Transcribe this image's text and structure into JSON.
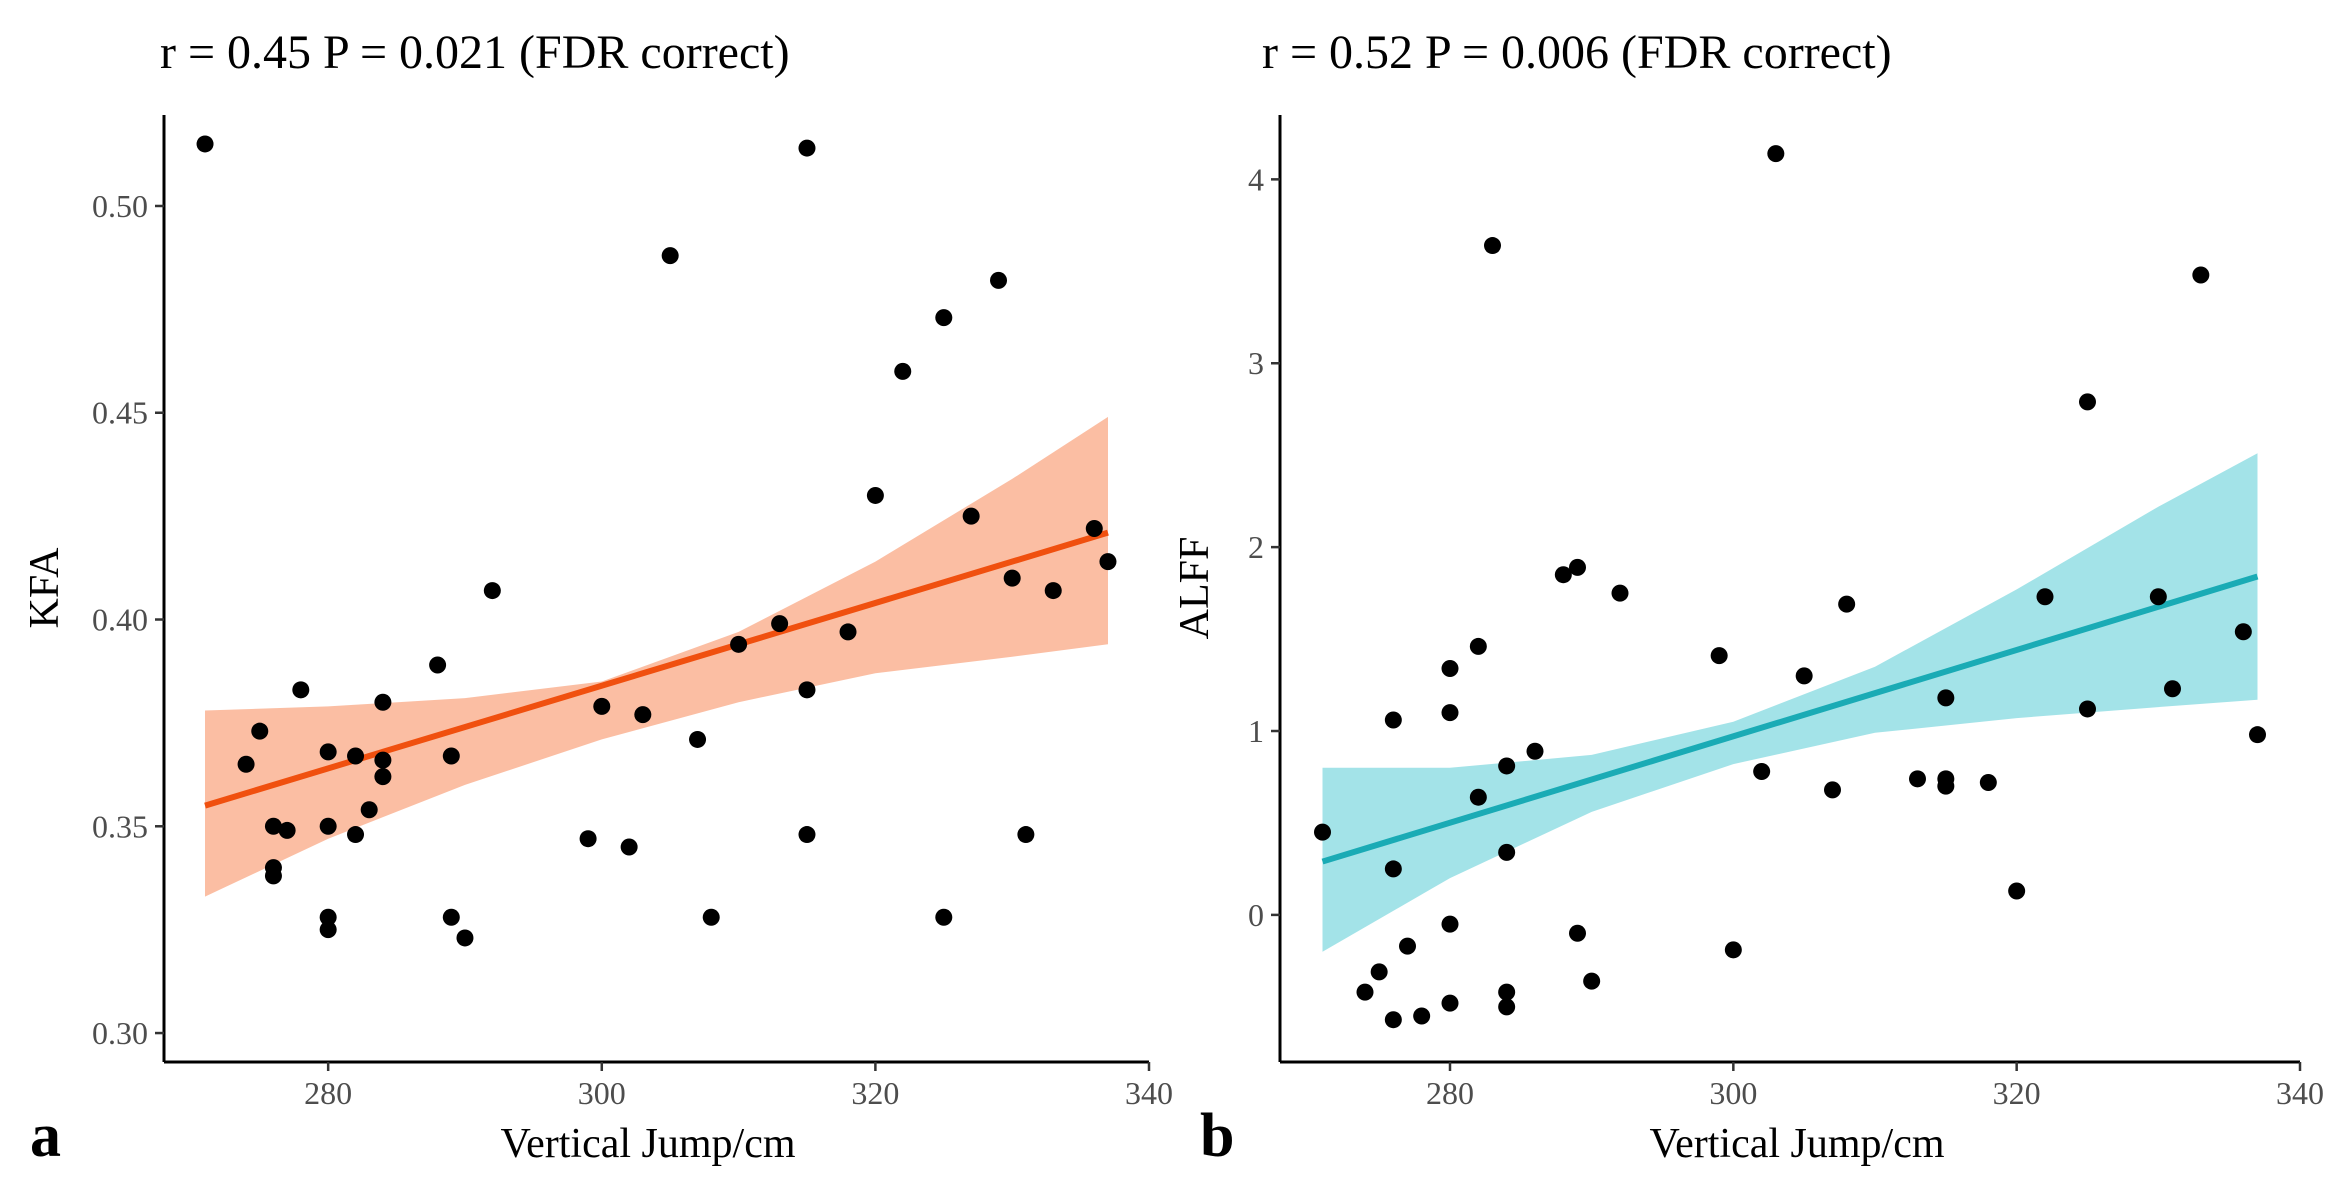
{
  "chart_data": [
    {
      "panel_label": "a",
      "type": "scatter",
      "title": "r = 0.45 P = 0.021 (FDR correct)",
      "xlabel": "Vertical Jump/cm",
      "ylabel": "KFA",
      "xlim": [
        268,
        340
      ],
      "ylim": [
        0.293,
        0.522
      ],
      "xticks": [
        "280",
        "300",
        "320",
        "340"
      ],
      "xtick_values": [
        280,
        300,
        320,
        340
      ],
      "yticks": [
        "0.30",
        "0.35",
        "0.40",
        "0.45",
        "0.50"
      ],
      "ytick_values": [
        0.3,
        0.35,
        0.4,
        0.45,
        0.5
      ],
      "grid": false,
      "point_color": "#000000",
      "fit_color": "#F0500F",
      "band_color": "#FBB596",
      "fit_line": {
        "x": [
          271,
          337
        ],
        "y": [
          0.355,
          0.421
        ]
      },
      "confidence_band": {
        "x": [
          271,
          280,
          290,
          300,
          310,
          320,
          330,
          337
        ],
        "lower": [
          0.333,
          0.347,
          0.36,
          0.371,
          0.38,
          0.387,
          0.391,
          0.394
        ],
        "upper": [
          0.378,
          0.379,
          0.381,
          0.385,
          0.397,
          0.414,
          0.434,
          0.449
        ]
      },
      "points": [
        {
          "x": 271,
          "y": 0.515
        },
        {
          "x": 274,
          "y": 0.365
        },
        {
          "x": 275,
          "y": 0.373
        },
        {
          "x": 276,
          "y": 0.35
        },
        {
          "x": 276,
          "y": 0.34
        },
        {
          "x": 276,
          "y": 0.338
        },
        {
          "x": 277,
          "y": 0.349
        },
        {
          "x": 278,
          "y": 0.383
        },
        {
          "x": 280,
          "y": 0.368
        },
        {
          "x": 280,
          "y": 0.35
        },
        {
          "x": 280,
          "y": 0.328
        },
        {
          "x": 280,
          "y": 0.325
        },
        {
          "x": 282,
          "y": 0.367
        },
        {
          "x": 282,
          "y": 0.348
        },
        {
          "x": 283,
          "y": 0.354
        },
        {
          "x": 284,
          "y": 0.38
        },
        {
          "x": 284,
          "y": 0.366
        },
        {
          "x": 284,
          "y": 0.362
        },
        {
          "x": 288,
          "y": 0.389
        },
        {
          "x": 289,
          "y": 0.367
        },
        {
          "x": 289,
          "y": 0.328
        },
        {
          "x": 290,
          "y": 0.323
        },
        {
          "x": 292,
          "y": 0.407
        },
        {
          "x": 299,
          "y": 0.347
        },
        {
          "x": 300,
          "y": 0.379
        },
        {
          "x": 302,
          "y": 0.345
        },
        {
          "x": 303,
          "y": 0.377
        },
        {
          "x": 305,
          "y": 0.488
        },
        {
          "x": 307,
          "y": 0.371
        },
        {
          "x": 308,
          "y": 0.328
        },
        {
          "x": 310,
          "y": 0.394
        },
        {
          "x": 313,
          "y": 0.399
        },
        {
          "x": 315,
          "y": 0.514
        },
        {
          "x": 315,
          "y": 0.383
        },
        {
          "x": 315,
          "y": 0.348
        },
        {
          "x": 318,
          "y": 0.397
        },
        {
          "x": 320,
          "y": 0.43
        },
        {
          "x": 322,
          "y": 0.46
        },
        {
          "x": 325,
          "y": 0.473
        },
        {
          "x": 325,
          "y": 0.328
        },
        {
          "x": 327,
          "y": 0.425
        },
        {
          "x": 329,
          "y": 0.482
        },
        {
          "x": 330,
          "y": 0.41
        },
        {
          "x": 331,
          "y": 0.348
        },
        {
          "x": 333,
          "y": 0.407
        },
        {
          "x": 336,
          "y": 0.422
        },
        {
          "x": 337,
          "y": 0.414
        }
      ]
    },
    {
      "panel_label": "b",
      "type": "scatter",
      "title": "r = 0.52 P = 0.006 (FDR correct)",
      "xlabel": "Vertical Jump/cm",
      "ylabel": "ALFF",
      "xlim": [
        268,
        340
      ],
      "ylim": [
        -0.8,
        4.35
      ],
      "xticks": [
        "280",
        "300",
        "320",
        "340"
      ],
      "xtick_values": [
        280,
        300,
        320,
        340
      ],
      "yticks": [
        "0",
        "1",
        "2",
        "3",
        "4"
      ],
      "ytick_values": [
        0,
        1,
        2,
        3,
        4
      ],
      "grid": false,
      "point_color": "#000000",
      "fit_color": "#1AABB5",
      "band_color": "#96DFE5",
      "fit_line": {
        "x": [
          271,
          337
        ],
        "y": [
          0.29,
          1.84
        ]
      },
      "confidence_band": {
        "x": [
          271,
          280,
          290,
          300,
          310,
          320,
          330,
          337
        ],
        "lower": [
          -0.2,
          0.2,
          0.56,
          0.82,
          0.99,
          1.07,
          1.13,
          1.17
        ],
        "upper": [
          0.8,
          0.8,
          0.87,
          1.05,
          1.35,
          1.77,
          2.22,
          2.51
        ]
      },
      "points": [
        {
          "x": 271,
          "y": 0.45
        },
        {
          "x": 274,
          "y": -0.42
        },
        {
          "x": 275,
          "y": -0.31
        },
        {
          "x": 276,
          "y": 1.06
        },
        {
          "x": 276,
          "y": 0.25
        },
        {
          "x": 276,
          "y": -0.57
        },
        {
          "x": 277,
          "y": -0.17
        },
        {
          "x": 278,
          "y": -0.55
        },
        {
          "x": 280,
          "y": 1.34
        },
        {
          "x": 280,
          "y": 1.1
        },
        {
          "x": 280,
          "y": -0.05
        },
        {
          "x": 280,
          "y": -0.48
        },
        {
          "x": 282,
          "y": 1.46
        },
        {
          "x": 282,
          "y": 0.64
        },
        {
          "x": 283,
          "y": 3.64
        },
        {
          "x": 284,
          "y": 0.81
        },
        {
          "x": 284,
          "y": 0.34
        },
        {
          "x": 284,
          "y": -0.42
        },
        {
          "x": 284,
          "y": -0.5
        },
        {
          "x": 286,
          "y": 0.89
        },
        {
          "x": 288,
          "y": 1.85
        },
        {
          "x": 289,
          "y": 1.89
        },
        {
          "x": 289,
          "y": -0.1
        },
        {
          "x": 290,
          "y": -0.36
        },
        {
          "x": 292,
          "y": 1.75
        },
        {
          "x": 299,
          "y": 1.41
        },
        {
          "x": 300,
          "y": -0.19
        },
        {
          "x": 302,
          "y": 0.78
        },
        {
          "x": 303,
          "y": 4.14
        },
        {
          "x": 305,
          "y": 1.3
        },
        {
          "x": 307,
          "y": 0.68
        },
        {
          "x": 308,
          "y": 1.69
        },
        {
          "x": 313,
          "y": 0.74
        },
        {
          "x": 315,
          "y": 1.18
        },
        {
          "x": 315,
          "y": 0.74
        },
        {
          "x": 315,
          "y": 0.7
        },
        {
          "x": 318,
          "y": 0.72
        },
        {
          "x": 320,
          "y": 0.13
        },
        {
          "x": 322,
          "y": 1.73
        },
        {
          "x": 325,
          "y": 2.79
        },
        {
          "x": 325,
          "y": 1.12
        },
        {
          "x": 330,
          "y": 1.73
        },
        {
          "x": 331,
          "y": 1.23
        },
        {
          "x": 333,
          "y": 3.48
        },
        {
          "x": 336,
          "y": 1.54
        },
        {
          "x": 337,
          "y": 0.98
        }
      ]
    }
  ]
}
